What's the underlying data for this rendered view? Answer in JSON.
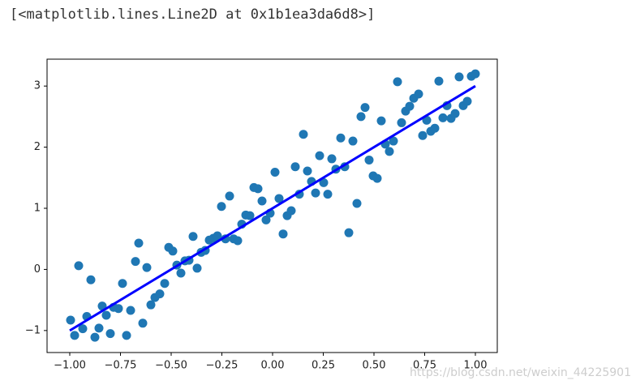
{
  "output": "[<matplotlib.lines.Line2D at 0x1b1ea3da6d8>]",
  "watermark": "https://blog.csdn.net/weixin_44225901",
  "chart_data": {
    "type": "scatter",
    "xlim": [
      -1.112,
      1.108
    ],
    "ylim": [
      -1.36,
      3.44
    ],
    "xticks": [
      {
        "value": -1,
        "label": "−1.00"
      },
      {
        "value": -0.75,
        "label": "−0.75"
      },
      {
        "value": -0.5,
        "label": "−0.50"
      },
      {
        "value": -0.25,
        "label": "−0.25"
      },
      {
        "value": 0,
        "label": "0.00"
      },
      {
        "value": 0.25,
        "label": "0.25"
      },
      {
        "value": 0.5,
        "label": "0.50"
      },
      {
        "value": 0.75,
        "label": "0.75"
      },
      {
        "value": 1,
        "label": "1.00"
      }
    ],
    "yticks": [
      {
        "value": -1,
        "label": "−1"
      },
      0,
      1,
      2,
      3
    ],
    "series": [
      {
        "type": "scatter",
        "color": "#1f77b4",
        "x": [
          -0.996,
          -0.976,
          -0.956,
          -0.936,
          -0.916,
          -0.896,
          -0.876,
          -0.856,
          -0.84,
          -0.82,
          -0.8,
          -0.784,
          -0.76,
          -0.74,
          -0.72,
          -0.7,
          -0.676,
          -0.66,
          -0.64,
          -0.62,
          -0.6,
          -0.58,
          -0.556,
          -0.532,
          -0.512,
          -0.492,
          -0.472,
          -0.452,
          -0.432,
          -0.412,
          -0.392,
          -0.372,
          -0.352,
          -0.332,
          -0.312,
          -0.292,
          -0.272,
          -0.252,
          -0.232,
          -0.212,
          -0.192,
          -0.172,
          -0.152,
          -0.132,
          -0.112,
          -0.092,
          -0.072,
          -0.052,
          -0.032,
          -0.012,
          0.012,
          0.032,
          0.052,
          0.072,
          0.092,
          0.112,
          0.132,
          0.152,
          0.172,
          0.192,
          0.212,
          0.232,
          0.252,
          0.272,
          0.292,
          0.312,
          0.336,
          0.356,
          0.376,
          0.396,
          0.416,
          0.436,
          0.456,
          0.476,
          0.496,
          0.516,
          0.536,
          0.556,
          0.576,
          0.596,
          0.616,
          0.636,
          0.656,
          0.676,
          0.696,
          0.72,
          0.74,
          0.76,
          0.78,
          0.8,
          0.82,
          0.84,
          0.86,
          0.88,
          0.9,
          0.92,
          0.94,
          0.96,
          0.98,
          1.0
        ],
        "values": [
          -0.83,
          -1.08,
          0.06,
          -0.97,
          -0.77,
          -0.17,
          -1.11,
          -0.96,
          -0.6,
          -0.75,
          -1.05,
          -0.62,
          -0.64,
          -0.23,
          -1.08,
          -0.67,
          0.13,
          0.43,
          -0.88,
          0.03,
          -0.58,
          -0.46,
          -0.4,
          -0.23,
          0.36,
          0.3,
          0.07,
          -0.06,
          0.14,
          0.15,
          0.54,
          0.02,
          0.28,
          0.31,
          0.48,
          0.51,
          0.55,
          1.03,
          0.5,
          1.2,
          0.5,
          0.47,
          0.74,
          0.89,
          0.88,
          1.34,
          1.32,
          1.12,
          0.81,
          0.92,
          1.59,
          1.16,
          0.58,
          0.88,
          0.96,
          1.68,
          1.23,
          2.21,
          1.61,
          1.44,
          1.25,
          1.86,
          1.42,
          1.23,
          1.81,
          1.64,
          2.15,
          1.68,
          0.6,
          2.1,
          1.08,
          2.5,
          2.65,
          1.79,
          1.53,
          1.49,
          2.43,
          2.05,
          1.93,
          2.1,
          3.07,
          2.4,
          2.59,
          2.67,
          2.8,
          2.87,
          2.19,
          2.44,
          2.26,
          2.31,
          3.08,
          2.48,
          2.68,
          2.47,
          2.55,
          3.15,
          2.68,
          2.75,
          3.16,
          3.2
        ]
      },
      {
        "type": "line",
        "color": "#0000ff",
        "x": [
          -1,
          1
        ],
        "values": [
          -1,
          3
        ]
      }
    ]
  }
}
